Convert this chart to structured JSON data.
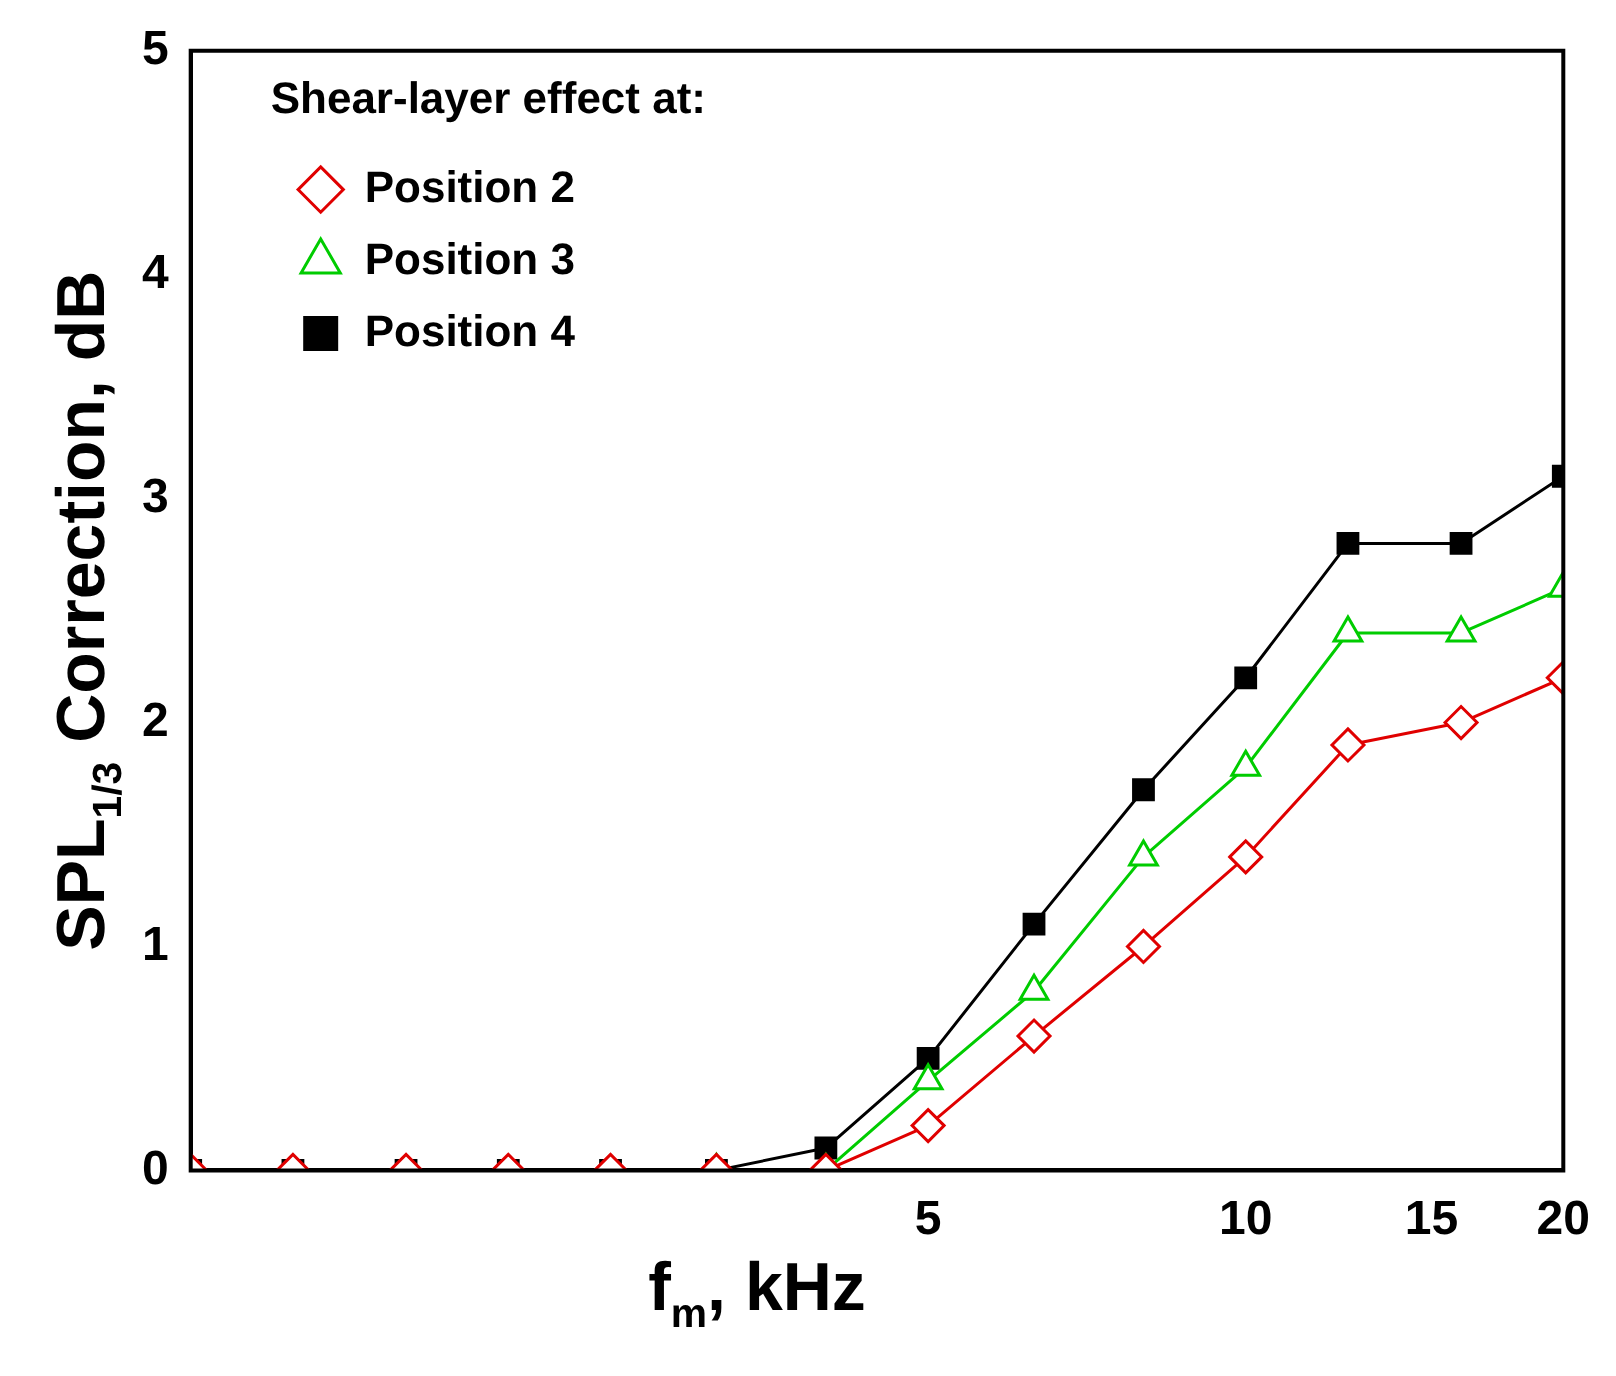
{
  "chart_data": {
    "type": "line",
    "xlabel": "f$_{m}$, kHz",
    "ylabel": "SPL$_{1/3}$ Correction, dB",
    "legend_title": "Shear-layer effect at:",
    "legend": "top left",
    "log": "x",
    "grid": false,
    "x": [
      1,
      1.25,
      1.6,
      2,
      2.5,
      3.15,
      4,
      5,
      6.3,
      8,
      10,
      12.5,
      16,
      20
    ],
    "xlim": [
      1,
      20
    ],
    "xticks": [
      5,
      10,
      15,
      20
    ],
    "ylim": [
      0,
      5
    ],
    "yticks": [
      0,
      1,
      2,
      3,
      4,
      5
    ],
    "series": [
      {
        "name": "Position 2",
        "color": "#e00000",
        "marker": "diamond",
        "values": [
          0,
          0,
          0,
          0,
          0,
          0,
          0,
          0.2,
          0.6,
          1.0,
          1.4,
          1.9,
          2.0,
          2.2
        ]
      },
      {
        "name": "Position 3",
        "color": "#00cc00",
        "marker": "triangle",
        "values": [
          null,
          null,
          null,
          null,
          null,
          0,
          0,
          0.4,
          0.8,
          1.4,
          1.8,
          2.4,
          2.4,
          2.6
        ]
      },
      {
        "name": "Position 4",
        "color": "#000000",
        "marker": "square",
        "values": [
          0,
          0,
          0,
          0,
          0,
          0,
          0.1,
          0.5,
          1.1,
          1.7,
          2.2,
          2.8,
          2.8,
          3.1
        ]
      }
    ]
  }
}
